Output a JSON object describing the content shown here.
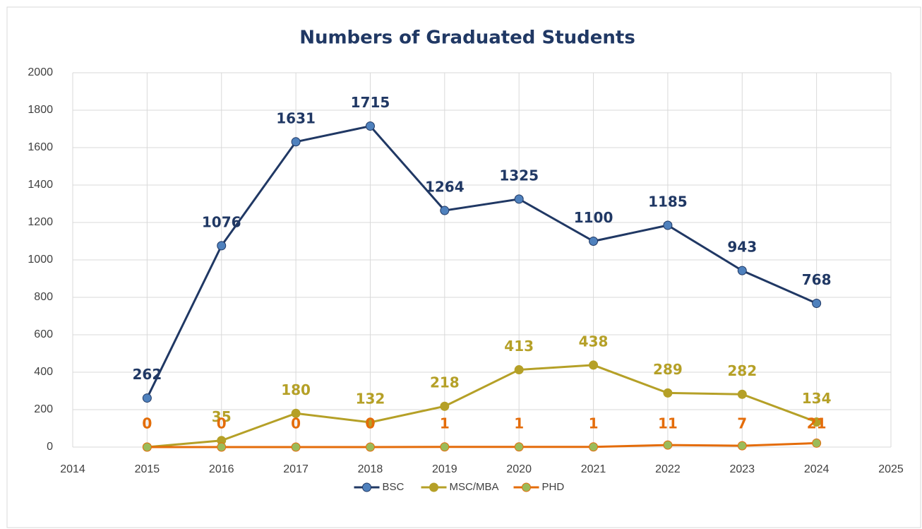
{
  "chart_data": {
    "type": "line",
    "title": "Numbers  of Graduated Students",
    "x": [
      2015,
      2016,
      2017,
      2018,
      2019,
      2020,
      2021,
      2022,
      2023,
      2024
    ],
    "series": [
      {
        "name": "BSC",
        "color": "#203864",
        "marker_color": "#4f81bd",
        "values": [
          262,
          1076,
          1631,
          1715,
          1264,
          1325,
          1100,
          1185,
          943,
          768
        ]
      },
      {
        "name": "MSC/MBA",
        "color": "#b5a027",
        "marker_color": "#b5a027",
        "values": [
          0,
          35,
          180,
          132,
          218,
          413,
          438,
          289,
          282,
          134
        ]
      },
      {
        "name": "PHD",
        "color": "#e46c0a",
        "marker_color": "#9bbb59",
        "values": [
          0,
          0,
          0,
          0,
          1,
          1,
          1,
          11,
          7,
          21
        ]
      }
    ],
    "xlim": [
      2014,
      2025
    ],
    "xticks": [
      2014,
      2015,
      2016,
      2017,
      2018,
      2019,
      2020,
      2021,
      2022,
      2023,
      2024,
      2025
    ],
    "ylim": [
      0,
      2000
    ],
    "yticks": [
      0,
      200,
      400,
      600,
      800,
      1000,
      1200,
      1400,
      1600,
      1800,
      2000
    ],
    "grid": true,
    "legend": "bottom"
  }
}
